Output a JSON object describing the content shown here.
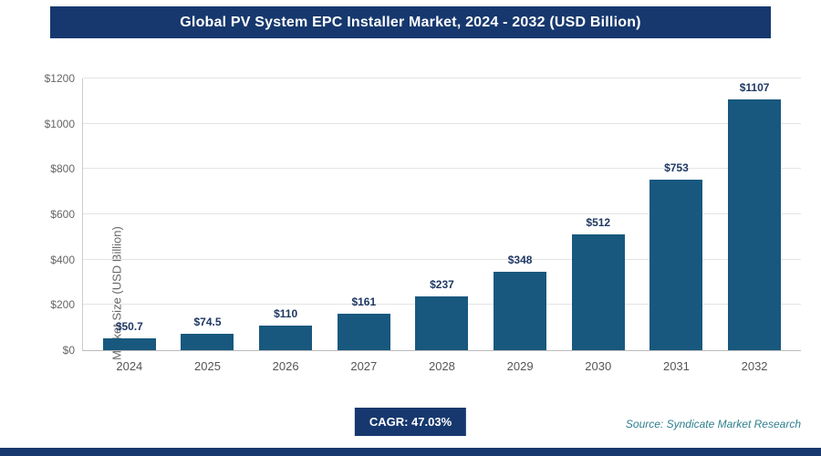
{
  "title": "Global PV System EPC Installer Market, 2024 - 2032 (USD Billion)",
  "footer": {
    "cagr_label": "CAGR: 47.03%",
    "source": "Source: Syndicate Market Research"
  },
  "colors": {
    "bar": "#18587e",
    "navy": "#16386e",
    "value_label": "#1f3864",
    "source_text": "#2e7f8e"
  },
  "chart_data": {
    "type": "bar",
    "title": "Global PV System EPC Installer Market, 2024 - 2032 (USD Billion)",
    "xlabel": "",
    "ylabel": "Market Size (USD Billion)",
    "categories": [
      "2024",
      "2025",
      "2026",
      "2027",
      "2028",
      "2029",
      "2030",
      "2031",
      "2032"
    ],
    "values": [
      50.7,
      74.5,
      110,
      161,
      237,
      348,
      512,
      753,
      1107
    ],
    "value_labels": [
      "$50.7",
      "$74.5",
      "$110",
      "$161",
      "$237",
      "$348",
      "$512",
      "$753",
      "$1107"
    ],
    "ylim": [
      0,
      1200
    ],
    "yticks": [
      0,
      200,
      400,
      600,
      800,
      1000,
      1200
    ],
    "ytick_labels": [
      "$0",
      "$200",
      "$400",
      "$600",
      "$800",
      "$1000",
      "$1200"
    ],
    "grid": true,
    "legend": false
  }
}
